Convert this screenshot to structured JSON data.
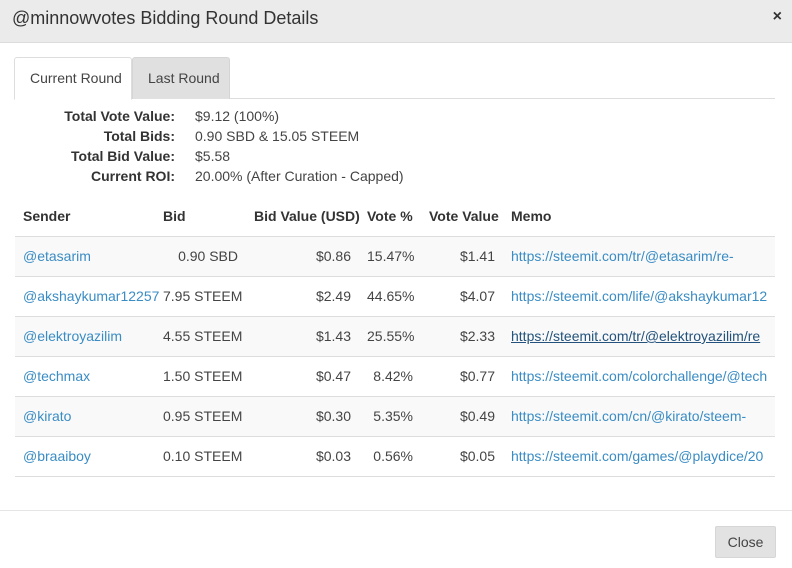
{
  "modal": {
    "title": "@minnowvotes Bidding Round Details",
    "close_x": "×",
    "close_button": "Close"
  },
  "tabs": [
    {
      "label": "Current Round",
      "active": true
    },
    {
      "label": "Last Round",
      "active": false
    }
  ],
  "summary": {
    "total_vote_value_label": "Total Vote Value:",
    "total_vote_value": "$9.12 (100%)",
    "total_bids_label": "Total Bids:",
    "total_bids": "0.90 SBD & 15.05 STEEM",
    "total_bid_value_label": "Total Bid Value:",
    "total_bid_value": "$5.58",
    "current_roi_label": "Current ROI:",
    "current_roi": "20.00% (After Curation - Capped)"
  },
  "table": {
    "headers": {
      "sender": "Sender",
      "bid": "Bid",
      "bid_value": "Bid Value (USD)",
      "vote_pct": "Vote %",
      "vote_value": "Vote Value",
      "memo": "Memo"
    },
    "rows": [
      {
        "sender": "@etasarim",
        "bid": "0.90 SBD",
        "bid_value": "$0.86",
        "vote_pct": "15.47%",
        "vote_value": "$1.41",
        "memo": "https://steemit.com/tr/@etasarim/re-"
      },
      {
        "sender": "@akshaykumar12257",
        "bid": "7.95 STEEM",
        "bid_value": "$2.49",
        "vote_pct": "44.65%",
        "vote_value": "$4.07",
        "memo": "https://steemit.com/life/@akshaykumar12"
      },
      {
        "sender": "@elektroyazilim",
        "bid": "4.55 STEEM",
        "bid_value": "$1.43",
        "vote_pct": "25.55%",
        "vote_value": "$2.33",
        "memo": "https://steemit.com/tr/@elektroyazilim/re"
      },
      {
        "sender": "@techmax",
        "bid": "1.50 STEEM",
        "bid_value": "$0.47",
        "vote_pct": "8.42%",
        "vote_value": "$0.77",
        "memo": "https://steemit.com/colorchallenge/@tech"
      },
      {
        "sender": "@kirato",
        "bid": "0.95 STEEM",
        "bid_value": "$0.30",
        "vote_pct": "5.35%",
        "vote_value": "$0.49",
        "memo": "https://steemit.com/cn/@kirato/steem-"
      },
      {
        "sender": "@braaiboy",
        "bid": "0.10 STEEM",
        "bid_value": "$0.03",
        "vote_pct": "0.56%",
        "vote_value": "$0.05",
        "memo": "https://steemit.com/games/@playdice/20"
      }
    ]
  }
}
